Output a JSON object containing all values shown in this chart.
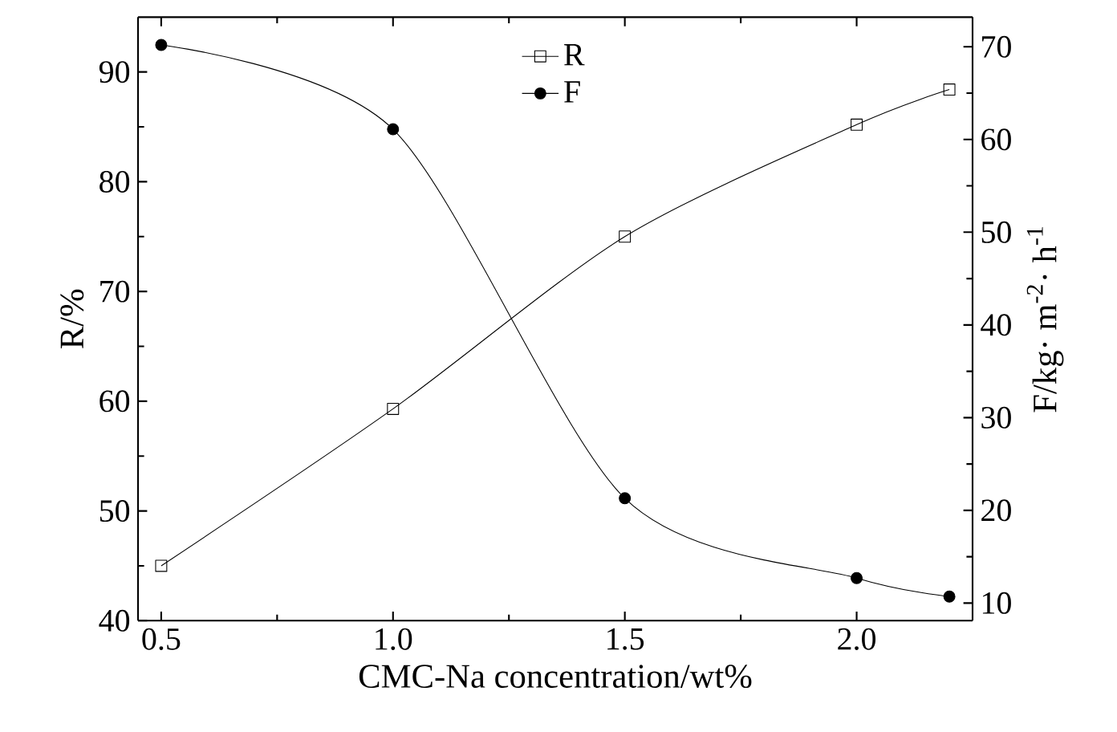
{
  "chart_data": {
    "type": "line",
    "xlabel": "CMC-Na concentration/wt%",
    "ylabel": "R/%",
    "y2label": "F/kg· m$^{-2}$· h$^{-1}$",
    "x": [
      0.5,
      1.0,
      1.5,
      2.0,
      2.2
    ],
    "series": [
      {
        "name": "R",
        "color": "#000000",
        "marker": "square",
        "values": [
          45,
          59.3,
          75,
          85.2,
          88.4
        ]
      },
      {
        "name": "F",
        "color": "#000000",
        "marker": "circle",
        "axis": "y2",
        "values": [
          70.2,
          61.1,
          21.3,
          12.7,
          10.7
        ]
      }
    ],
    "xlim": [
      0.45,
      2.25
    ],
    "xticks": [
      0.5,
      {
        "value": 1.0,
        "label": "1.0"
      },
      1.5,
      {
        "value": 2.0,
        "label": "2.0"
      }
    ],
    "ylim": [
      40,
      95
    ],
    "yticks": [
      40,
      50,
      60,
      70,
      80,
      90
    ],
    "y2lim": [
      8.1,
      73.2
    ],
    "y2ticks": [
      10,
      20,
      30,
      40,
      50,
      60,
      70
    ],
    "grid": false,
    "legend": "top"
  }
}
